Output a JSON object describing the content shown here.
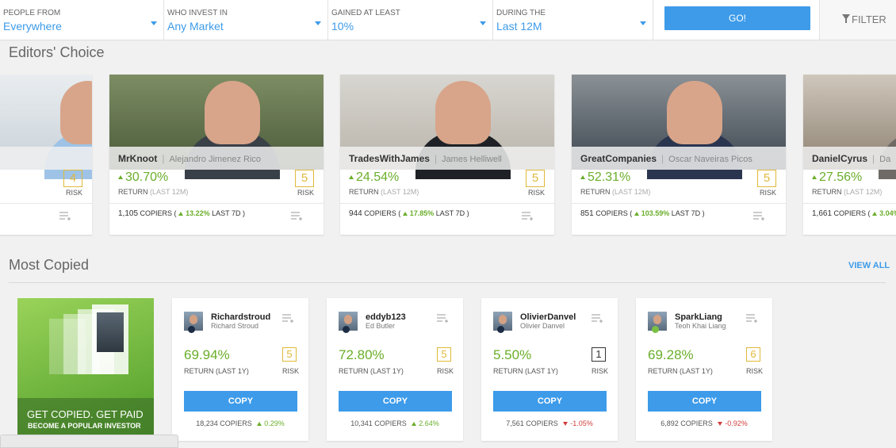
{
  "filters": [
    {
      "label": "PEOPLE FROM",
      "value": "Everywhere"
    },
    {
      "label": "WHO INVEST IN",
      "value": "Any Market"
    },
    {
      "label": "GAINED AT LEAST",
      "value": "10%"
    },
    {
      "label": "DURING THE",
      "value": "Last 12M"
    }
  ],
  "go": "GO!",
  "filter": "FILTER",
  "editors_choice": {
    "title": "Editors' Choice",
    "return_label": "RETURN",
    "period": "(LAST 12M)",
    "risk_label": "RISK",
    "copiers_label": "COPIERS (",
    "week_label": "LAST 7D )",
    "cards": [
      {
        "risk": 4
      },
      {
        "username": "MrKnoot",
        "full_name": "Alejandro Jimenez Rico",
        "gain": "30.70%",
        "risk": 5,
        "copiers": "1,105",
        "change": "13.22%"
      },
      {
        "username": "TradesWithJames",
        "full_name": "James Helliwell",
        "gain": "24.54%",
        "risk": 5,
        "copiers": "944",
        "change": "17.85%"
      },
      {
        "username": "GreatCompanies",
        "full_name": "Oscar Naveiras Picos",
        "gain": "52.31%",
        "risk": 5,
        "copiers": "851",
        "change": "103.59%"
      },
      {
        "username": "DanielCyrus",
        "full_name": "Da",
        "gain": "27.56%",
        "copiers": "1,661",
        "change": "3.04%"
      }
    ]
  },
  "most_copied": {
    "title": "Most Copied",
    "view_all": "VIEW ALL",
    "promo": {
      "title": "GET COPIED. GET PAID",
      "subtitle": "BECOME A POPULAR INVESTOR"
    },
    "return_label": "RETURN (LAST 1Y)",
    "risk_label": "RISK",
    "copy": "COPY",
    "copiers_label": "COPIERS",
    "cards": [
      {
        "username": "Richardstroud",
        "full_name": "Richard Stroud",
        "gain": "69.94%",
        "risk": 5,
        "copiers": "18,234",
        "change": "0.29%",
        "trend": "up"
      },
      {
        "username": "eddyb123",
        "full_name": "Ed Butler",
        "gain": "72.80%",
        "risk": 5,
        "copiers": "10,341",
        "change": "2.64%",
        "trend": "up"
      },
      {
        "username": "OlivierDanvel",
        "full_name": "Olivier Danvel",
        "gain": "5.50%",
        "risk": 1,
        "copiers": "7,561",
        "change": "-1.05%",
        "trend": "down"
      },
      {
        "username": "SparkLiang",
        "full_name": "Teoh Khai Liang",
        "gain": "69.28%",
        "risk": 6,
        "copiers": "6,892",
        "change": "-0.92%",
        "trend": "down"
      }
    ]
  }
}
